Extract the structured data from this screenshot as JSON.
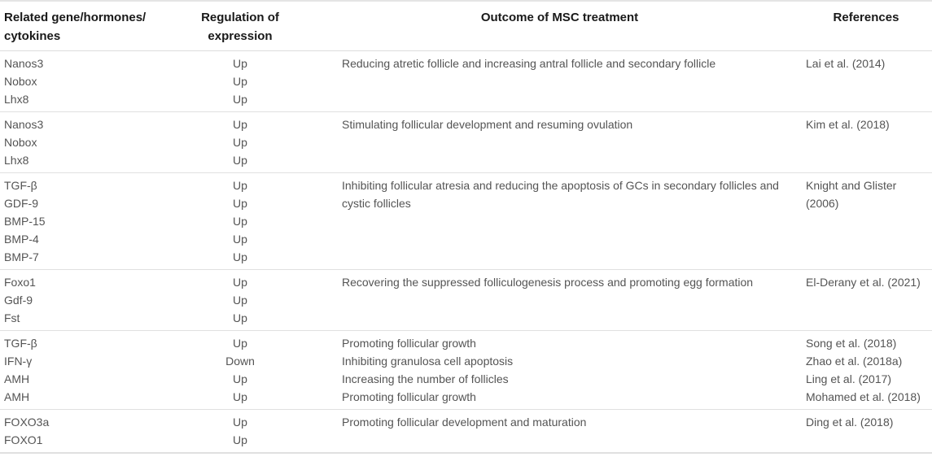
{
  "table": {
    "headers": {
      "col1": "Related gene/hormones/\ncytokines",
      "col2": "Regulation of\nexpression",
      "col3": "Outcome of MSC treatment",
      "col4": "References"
    },
    "rows": [
      {
        "genes": [
          "Nanos3",
          "Nobox",
          "Lhx8"
        ],
        "regulation": [
          "Up",
          "Up",
          "Up"
        ],
        "outcomes": [
          "Reducing atretic follicle and increasing antral follicle and secondary follicle"
        ],
        "references": [
          "Lai et al. (2014)"
        ]
      },
      {
        "genes": [
          "Nanos3",
          "Nobox",
          "Lhx8"
        ],
        "regulation": [
          "Up",
          "Up",
          "Up"
        ],
        "outcomes": [
          "Stimulating follicular development and resuming ovulation"
        ],
        "references": [
          "Kim et al. (2018)"
        ]
      },
      {
        "genes": [
          "TGF-β",
          "GDF-9",
          "BMP-15",
          "BMP-4",
          "BMP-7"
        ],
        "regulation": [
          "Up",
          "Up",
          "Up",
          "Up",
          "Up"
        ],
        "outcomes": [
          "Inhibiting follicular atresia and reducing the apoptosis of GCs in secondary follicles and cystic follicles"
        ],
        "references": [
          "Knight and Glister (2006)"
        ]
      },
      {
        "genes": [
          "Foxo1",
          "Gdf-9",
          "Fst"
        ],
        "regulation": [
          "Up",
          "Up",
          "Up"
        ],
        "outcomes": [
          "Recovering the suppressed folliculogenesis process and promoting egg formation"
        ],
        "references": [
          "El-Derany et al. (2021)"
        ]
      },
      {
        "genes": [
          "TGF-β",
          "IFN-γ",
          "AMH",
          "AMH"
        ],
        "regulation": [
          "Up",
          "Down",
          "Up",
          "Up"
        ],
        "outcomes": [
          "Promoting follicular growth",
          "Inhibiting granulosa cell apoptosis",
          "Increasing the number of follicles",
          "Promoting follicular growth"
        ],
        "references": [
          "Song et al. (2018)",
          "Zhao et al. (2018a)",
          "Ling et al. (2017)",
          "Mohamed et al. (2018)"
        ]
      },
      {
        "genes": [
          "FOXO3a",
          "FOXO1"
        ],
        "regulation": [
          "Up",
          "Up"
        ],
        "outcomes": [
          "Promoting follicular development and maturation"
        ],
        "references": [
          "Ding et al. (2018)"
        ]
      }
    ]
  },
  "colors": {
    "background": "#ffffff",
    "header_text": "#191919",
    "body_text": "#545454",
    "rule": "#dcdcdc"
  }
}
